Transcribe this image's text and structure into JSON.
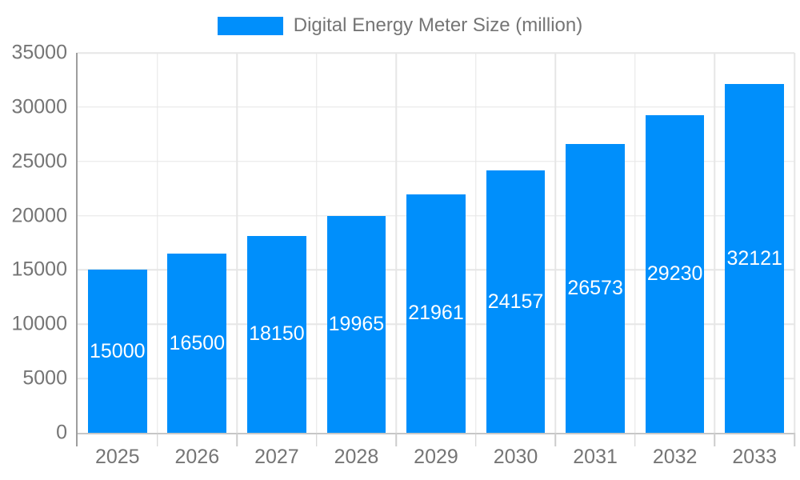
{
  "chart_data": {
    "type": "bar",
    "title": "Digital Energy Meter Size (million)",
    "legend_label": "Digital Energy Meter Size (million)",
    "legend_position": "top",
    "categories": [
      "2025",
      "2026",
      "2027",
      "2028",
      "2029",
      "2030",
      "2031",
      "2032",
      "2033"
    ],
    "values": [
      15000,
      16500,
      18150,
      19965,
      21961,
      24157,
      26573,
      29230,
      32121
    ],
    "xlabel": "",
    "ylabel": "",
    "ylim": [
      0,
      35000
    ],
    "ytick_step": 5000,
    "yticks": [
      0,
      5000,
      10000,
      15000,
      20000,
      25000,
      30000,
      35000
    ],
    "grid": true,
    "bar_labels_inside": true,
    "colors": {
      "bar": "#008ffb",
      "gridline": "#e6e6e6",
      "axis_line": "#9e9e9e",
      "baseline": "#c6c6c6",
      "tick": "#cccccc",
      "axis_text": "#757575",
      "bar_label_text": "#ffffff",
      "background": "#ffffff"
    }
  }
}
